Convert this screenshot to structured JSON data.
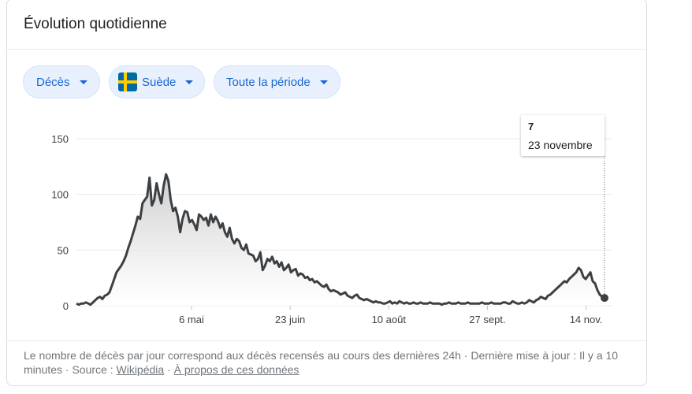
{
  "card": {
    "title": "Évolution quotidienne"
  },
  "filters": {
    "metric": "Décès",
    "country": "Suède",
    "period": "Toute la période"
  },
  "colors": {
    "accent": "#1967d2",
    "chip_bg": "#e8f0fe",
    "line": "#3c4043",
    "flag_blue": "#006aa7",
    "flag_yellow": "#fecc00"
  },
  "tooltip": {
    "value": "7",
    "date": "23 novembre"
  },
  "footer": {
    "text": "Le nombre de décès par jour correspond aux décès recensés au cours des dernières 24h · Dernière mise à jour : Il y a 10 minutes · Source : ",
    "source_link": "Wikipédia",
    "separator": " · ",
    "about_link": "À propos de ces données"
  },
  "chart_data": {
    "type": "area",
    "title": "",
    "xlabel": "",
    "ylabel": "",
    "ylim": [
      0,
      150
    ],
    "yticks": [
      "0",
      "50",
      "100",
      "150"
    ],
    "xticks": [
      "6 mai",
      "23 juin",
      "10 août",
      "27 sept.",
      "14 nov."
    ],
    "xtick_dates": [
      "2020-05-06",
      "2020-06-23",
      "2020-08-10",
      "2020-09-27",
      "2020-11-14"
    ],
    "x_range": [
      "2020-03-11",
      "2020-11-23"
    ],
    "grid": true,
    "values": [
      2,
      1,
      2,
      2,
      3,
      2,
      1,
      3,
      5,
      7,
      8,
      6,
      9,
      10,
      12,
      18,
      24,
      30,
      33,
      36,
      40,
      45,
      52,
      58,
      65,
      72,
      80,
      78,
      92,
      95,
      98,
      115,
      90,
      95,
      110,
      100,
      92,
      108,
      118,
      112,
      95,
      85,
      88,
      80,
      66,
      78,
      85,
      84,
      75,
      77,
      73,
      68,
      82,
      80,
      77,
      79,
      72,
      82,
      75,
      80,
      76,
      70,
      74,
      66,
      62,
      70,
      60,
      56,
      60,
      58,
      52,
      50,
      55,
      47,
      46,
      45,
      40,
      42,
      48,
      32,
      36,
      42,
      40,
      44,
      38,
      40,
      35,
      39,
      32,
      34,
      37,
      30,
      32,
      33,
      27,
      29,
      28,
      25,
      26,
      23,
      24,
      21,
      22,
      20,
      18,
      17,
      19,
      15,
      13,
      14,
      13,
      12,
      10,
      11,
      12,
      9,
      8,
      7,
      9,
      10,
      7,
      6,
      5,
      6,
      5,
      4,
      3,
      4,
      3,
      3,
      2,
      2,
      3,
      4,
      2,
      3,
      2,
      4,
      3,
      2,
      3,
      2,
      2,
      3,
      2,
      2,
      3,
      2,
      2,
      2,
      3,
      2,
      2,
      2,
      2,
      1,
      2,
      2,
      3,
      2,
      2,
      2,
      3,
      2,
      2,
      2,
      3,
      2,
      2,
      2,
      2,
      2,
      3,
      2,
      2,
      2,
      3,
      2,
      2,
      2,
      2,
      3,
      3,
      2,
      2,
      4,
      3,
      2,
      2,
      3,
      2,
      3,
      5,
      4,
      3,
      5,
      6,
      8,
      7,
      6,
      9,
      10,
      12,
      14,
      16,
      18,
      20,
      22,
      21,
      24,
      26,
      28,
      30,
      34,
      32,
      26,
      24,
      27,
      30,
      22,
      20,
      14,
      10,
      8,
      7
    ]
  }
}
